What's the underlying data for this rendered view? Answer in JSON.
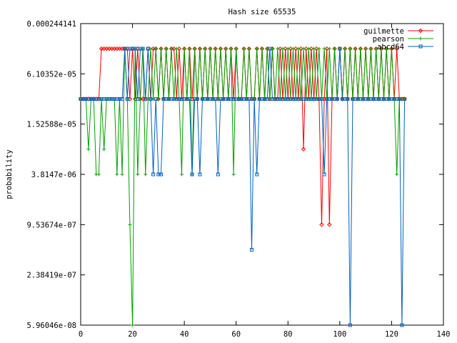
{
  "chart_data": {
    "type": "line",
    "title": "Hash size 65535",
    "xlabel": "",
    "ylabel": "probability",
    "xlim": [
      0,
      140
    ],
    "x_ticks": [
      0,
      20,
      40,
      60,
      80,
      100,
      120,
      140
    ],
    "y_scale": "log4",
    "ylim_exp": [
      -24,
      -12
    ],
    "y_ticks": [
      {
        "exp": -12,
        "label": "0.000244141"
      },
      {
        "exp": -14,
        "label": "6.10352e-05"
      },
      {
        "exp": -16,
        "label": "1.52588e-05"
      },
      {
        "exp": -18,
        "label": "3.8147e-06"
      },
      {
        "exp": -20,
        "label": "9.53674e-07"
      },
      {
        "exp": -22,
        "label": "2.38419e-07"
      },
      {
        "exp": -24,
        "label": "5.96046e-08"
      }
    ],
    "legend_position": "top-right",
    "grid": false,
    "series": [
      {
        "name": "guilmette",
        "color": "#ff0000",
        "marker": "diamond",
        "x_start": 0,
        "y_exp": [
          -15,
          -15,
          -15,
          -15,
          -15,
          -15,
          -15,
          -15,
          -13,
          -13,
          -13,
          -13,
          -13,
          -13,
          -13,
          -13,
          -13,
          -13,
          -13,
          -15,
          -13,
          -15,
          -13,
          -15,
          -15,
          -15,
          -13,
          -15,
          -13,
          -13,
          -15,
          -13,
          -15,
          -13,
          -15,
          -13,
          -13,
          -15,
          -13,
          -15,
          -13,
          -15,
          -13,
          -15,
          -13,
          -15,
          -13,
          -15,
          -13,
          -15,
          -13,
          -15,
          -13,
          -15,
          -13,
          -15,
          -13,
          -15,
          -13,
          -15,
          -13,
          -15,
          -15,
          -13,
          -15,
          -13,
          -15,
          -15,
          -13,
          -15,
          -13,
          -15,
          -13,
          -15,
          -13,
          -15,
          -15,
          -13,
          -15,
          -13,
          -15,
          -13,
          -15,
          -13,
          -15,
          -13,
          -17,
          -13,
          -15,
          -13,
          -15,
          -13,
          -15,
          -20,
          -15,
          -13,
          -20,
          -15,
          -13,
          -15,
          -13,
          -15,
          -13,
          -15,
          -13,
          -15,
          -13,
          -15,
          -13,
          -15,
          -13,
          -15,
          -13,
          -15,
          -13,
          -15,
          -13,
          -15,
          -13,
          -15,
          -13,
          -15,
          -13,
          -15,
          -15,
          -15
        ]
      },
      {
        "name": "pearson",
        "color": "#00a000",
        "marker": "plus",
        "x_start": 0,
        "y_exp": [
          -15,
          -15,
          -15,
          -17,
          -15,
          -15,
          -18,
          -18,
          -15,
          -17,
          -15,
          -15,
          -15,
          -15,
          -18,
          -15,
          -18,
          -13,
          -15,
          -20,
          -24,
          -13,
          -18,
          -15,
          -13,
          -18,
          -15,
          -13,
          -15,
          -13,
          -15,
          -13,
          -15,
          -13,
          -15,
          -13,
          -15,
          -13,
          -15,
          -18,
          -13,
          -15,
          -13,
          -18,
          -13,
          -15,
          -13,
          -15,
          -13,
          -15,
          -13,
          -15,
          -13,
          -15,
          -13,
          -15,
          -13,
          -15,
          -13,
          -18,
          -13,
          -15,
          -15,
          -13,
          -15,
          -13,
          -15,
          -15,
          -13,
          -15,
          -13,
          -15,
          -13,
          -15,
          -13,
          -15,
          -13,
          -15,
          -13,
          -15,
          -13,
          -15,
          -13,
          -15,
          -13,
          -15,
          -13,
          -15,
          -13,
          -15,
          -13,
          -15,
          -13,
          -15,
          -13,
          -15,
          -13,
          -15,
          -13,
          -15,
          -13,
          -15,
          -13,
          -15,
          -13,
          -15,
          -13,
          -15,
          -13,
          -15,
          -13,
          -15,
          -13,
          -15,
          -13,
          -15,
          -13,
          -15,
          -13,
          -15,
          -13,
          -15,
          -18,
          -15,
          -15,
          -15
        ]
      },
      {
        "name": "abcd64",
        "color": "#0060c0",
        "marker": "square",
        "x_start": 0,
        "y_exp": [
          -15,
          -15,
          -15,
          -15,
          -15,
          -15,
          -15,
          -15,
          -15,
          -15,
          -15,
          -15,
          -15,
          -15,
          -15,
          -15,
          -15,
          -13,
          -15,
          -13,
          -13,
          -13,
          -15,
          -13,
          -13,
          -15,
          -13,
          -15,
          -18,
          -15,
          -18,
          -18,
          -15,
          -15,
          -15,
          -15,
          -15,
          -15,
          -15,
          -15,
          -15,
          -15,
          -15,
          -18,
          -15,
          -15,
          -18,
          -15,
          -15,
          -15,
          -15,
          -15,
          -15,
          -18,
          -15,
          -15,
          -15,
          -15,
          -15,
          -15,
          -15,
          -15,
          -15,
          -15,
          -15,
          -15,
          -21,
          -15,
          -18,
          -15,
          -15,
          -15,
          -15,
          -13,
          -15,
          -15,
          -15,
          -15,
          -15,
          -15,
          -15,
          -15,
          -15,
          -15,
          -15,
          -15,
          -15,
          -15,
          -15,
          -15,
          -15,
          -15,
          -15,
          -15,
          -18,
          -15,
          -15,
          -15,
          -15,
          -15,
          -13,
          -15,
          -15,
          -15,
          -24,
          -15,
          -15,
          -15,
          -15,
          -15,
          -15,
          -15,
          -15,
          -15,
          -15,
          -15,
          -15,
          -15,
          -15,
          -15,
          -15,
          -15,
          -15,
          -15,
          -24,
          -15
        ]
      }
    ]
  }
}
